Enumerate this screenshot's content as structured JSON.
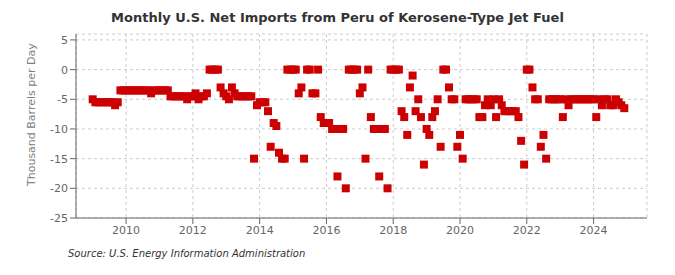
{
  "chart_data": {
    "type": "scatter",
    "title": "Monthly U.S. Net Imports from Peru of Kerosene-Type Jet Fuel",
    "y_label": "Thousand Barrels per Day",
    "annotations": [
      "Source: U.S. Energy Information Administration"
    ],
    "xlim": [
      2008.5,
      2025.6
    ],
    "xticks": [
      2010,
      2012,
      2014,
      2016,
      2018,
      2020,
      2022,
      2024
    ],
    "ylim": [
      -25,
      6
    ],
    "yticks": [
      5,
      0,
      -5,
      -10,
      -15,
      -20,
      -25
    ],
    "grid": true,
    "color": "#cc0000",
    "marker": "square",
    "x": [
      2009.0,
      2009.08,
      2009.17,
      2009.25,
      2009.33,
      2009.42,
      2009.5,
      2009.58,
      2009.67,
      2009.75,
      2009.83,
      2009.92,
      2010.0,
      2010.08,
      2010.17,
      2010.25,
      2010.33,
      2010.42,
      2010.5,
      2010.58,
      2010.67,
      2010.75,
      2010.83,
      2010.92,
      2011.0,
      2011.08,
      2011.17,
      2011.25,
      2011.33,
      2011.42,
      2011.5,
      2011.58,
      2011.67,
      2011.75,
      2011.83,
      2011.92,
      2012.0,
      2012.08,
      2012.17,
      2012.25,
      2012.33,
      2012.42,
      2012.5,
      2012.58,
      2012.67,
      2012.75,
      2012.83,
      2012.92,
      2013.0,
      2013.08,
      2013.17,
      2013.25,
      2013.33,
      2013.42,
      2013.5,
      2013.58,
      2013.67,
      2013.75,
      2013.83,
      2013.92,
      2014.0,
      2014.08,
      2014.17,
      2014.25,
      2014.33,
      2014.42,
      2014.5,
      2014.58,
      2014.67,
      2014.75,
      2014.83,
      2014.92,
      2015.0,
      2015.08,
      2015.17,
      2015.25,
      2015.33,
      2015.42,
      2015.5,
      2015.58,
      2015.67,
      2015.75,
      2015.83,
      2015.92,
      2016.0,
      2016.08,
      2016.17,
      2016.25,
      2016.33,
      2016.42,
      2016.5,
      2016.58,
      2016.67,
      2016.75,
      2016.83,
      2016.92,
      2017.0,
      2017.08,
      2017.17,
      2017.25,
      2017.33,
      2017.42,
      2017.5,
      2017.58,
      2017.67,
      2017.75,
      2017.83,
      2017.92,
      2018.0,
      2018.08,
      2018.17,
      2018.25,
      2018.33,
      2018.42,
      2018.5,
      2018.58,
      2018.67,
      2018.75,
      2018.83,
      2018.92,
      2019.0,
      2019.08,
      2019.17,
      2019.25,
      2019.33,
      2019.42,
      2019.5,
      2019.58,
      2019.67,
      2019.75,
      2019.83,
      2019.92,
      2020.0,
      2020.08,
      2020.17,
      2020.25,
      2020.33,
      2020.42,
      2020.5,
      2020.58,
      2020.67,
      2020.75,
      2020.83,
      2020.92,
      2021.0,
      2021.08,
      2021.17,
      2021.25,
      2021.33,
      2021.42,
      2021.5,
      2021.58,
      2021.67,
      2021.75,
      2021.83,
      2021.92,
      2022.0,
      2022.08,
      2022.17,
      2022.25,
      2022.33,
      2022.42,
      2022.5,
      2022.58,
      2022.67,
      2022.75,
      2022.83,
      2022.92,
      2023.0,
      2023.08,
      2023.17,
      2023.25,
      2023.33,
      2023.42,
      2023.5,
      2023.58,
      2023.67,
      2023.75,
      2023.83,
      2023.92,
      2024.0,
      2024.08,
      2024.17,
      2024.25,
      2024.33,
      2024.42,
      2024.5,
      2024.58,
      2024.67,
      2024.75,
      2024.83,
      2024.92
    ],
    "values": [
      -5.0,
      -5.5,
      -5.5,
      -5.5,
      -5.5,
      -5.5,
      -5.5,
      -5.5,
      -6.0,
      -5.5,
      -3.5,
      -3.5,
      -3.5,
      -3.5,
      -3.5,
      -3.5,
      -3.5,
      -3.5,
      -3.5,
      -3.5,
      -3.5,
      -4.0,
      -3.5,
      -3.5,
      -3.5,
      -3.5,
      -3.5,
      -3.5,
      -4.5,
      -4.5,
      -4.5,
      -4.5,
      -4.5,
      -4.5,
      -5.0,
      -4.5,
      -4.5,
      -4.0,
      -5.0,
      -4.5,
      -4.5,
      -4.0,
      0.0,
      0.0,
      0.0,
      0.0,
      -3.0,
      -4.0,
      -4.5,
      -5.0,
      -3.0,
      -4.0,
      -4.5,
      -4.5,
      -4.5,
      -4.5,
      -4.5,
      -4.5,
      -15.0,
      -6.0,
      -5.5,
      -5.5,
      -5.5,
      -7.0,
      -13.0,
      -9.0,
      -9.5,
      -14.0,
      -15.0,
      -15.0,
      0.0,
      0.0,
      0.0,
      0.0,
      -4.0,
      -3.0,
      -15.0,
      0.0,
      0.0,
      -4.0,
      -4.0,
      0.0,
      -8.0,
      -9.0,
      -9.0,
      -9.0,
      -10.0,
      -10.0,
      -18.0,
      -10.0,
      -10.0,
      -20.0,
      0.0,
      0.0,
      0.0,
      0.0,
      -4.0,
      -3.0,
      -15.0,
      0.0,
      -8.0,
      -10.0,
      -10.0,
      -18.0,
      -10.0,
      -10.0,
      -20.0,
      0.0,
      0.0,
      0.0,
      0.0,
      -7.0,
      -8.0,
      -11.0,
      -3.0,
      -1.0,
      -7.0,
      -5.0,
      -8.0,
      -16.0,
      -10.0,
      -11.0,
      -8.0,
      -7.0,
      -5.0,
      -13.0,
      0.0,
      0.0,
      -3.0,
      -5.0,
      -5.0,
      -13.0,
      -11.0,
      -15.0,
      -5.0,
      -5.0,
      -5.0,
      -5.0,
      -5.0,
      -8.0,
      -8.0,
      -6.0,
      -5.0,
      -6.0,
      -5.0,
      -8.0,
      -5.0,
      -6.0,
      -7.0,
      -7.0,
      -7.0,
      -7.0,
      -7.0,
      -8.0,
      -12.0,
      -16.0,
      0.0,
      0.0,
      -3.0,
      -5.0,
      -5.0,
      -13.0,
      -11.0,
      -15.0,
      -5.0,
      -5.0,
      -5.0,
      -5.0,
      -5.0,
      -8.0,
      -5.0,
      -6.0,
      -5.0,
      -5.0,
      -5.0,
      -5.0,
      -5.0,
      -5.0,
      -5.0,
      -5.0,
      -5.0,
      -8.0,
      -5.0,
      -6.0,
      -5.0,
      -5.0,
      -6.0,
      -6.0,
      -5.0,
      -5.5,
      -6.0,
      -6.5
    ]
  }
}
